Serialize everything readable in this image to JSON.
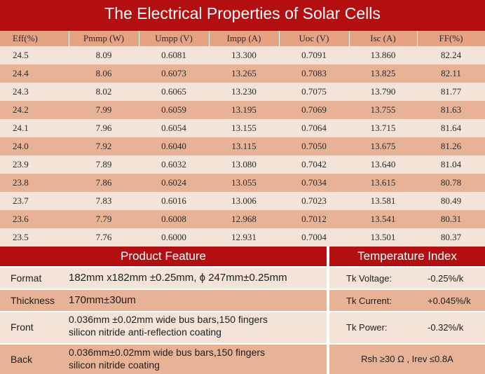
{
  "title": "The Electrical Properties of Solar Cells",
  "table": {
    "headers": [
      "Eff(%)",
      "Pmmp (W)",
      "Umpp (V)",
      "Impp (A)",
      "Uoc (V)",
      "Isc (A)",
      "FF(%)"
    ],
    "rows": [
      [
        "24.5",
        "8.09",
        "0.6081",
        "13.300",
        "0.7091",
        "13.860",
        "82.24"
      ],
      [
        "24.4",
        "8.06",
        "0.6073",
        "13.265",
        "0.7083",
        "13.825",
        "82.11"
      ],
      [
        "24.3",
        "8.02",
        "0.6065",
        "13.230",
        "0.7075",
        "13.790",
        "81.77"
      ],
      [
        "24.2",
        "7.99",
        "0.6059",
        "13.195",
        "0.7069",
        "13.755",
        "81.63"
      ],
      [
        "24.1",
        "7.96",
        "0.6054",
        "13.155",
        "0.7064",
        "13.715",
        "81.64"
      ],
      [
        "24.0",
        "7.92",
        "0.6040",
        "13.115",
        "0.7050",
        "13.675",
        "81.26"
      ],
      [
        "23.9",
        "7.89",
        "0.6032",
        "13.080",
        "0.7042",
        "13.640",
        "81.04"
      ],
      [
        "23.8",
        "7.86",
        "0.6024",
        "13.055",
        "0.7034",
        "13.615",
        "80.78"
      ],
      [
        "23.7",
        "7.83",
        "0.6016",
        "13.006",
        "0.7023",
        "13.581",
        "80.49"
      ],
      [
        "23.6",
        "7.79",
        "0.6008",
        "12.968",
        "0.7012",
        "13.541",
        "80.31"
      ],
      [
        "23.5",
        "7.76",
        "0.6000",
        "12.931",
        "0.7004",
        "13.501",
        "80.37"
      ]
    ]
  },
  "product_feature": {
    "title": "Product Feature",
    "format_label": "Format",
    "format_value": "182mm x182mm ±0.25mm, ϕ 247mm±0.25mm",
    "thickness_label": "Thickness",
    "thickness_value": "170mm±30um",
    "front_label": "Front",
    "front_line1": "0.036mm ±0.02mm wide bus bars,150 fingers",
    "front_line2": "silicon nitride anti-reflection coating",
    "back_label": "Back",
    "back_line1": "0.036mm±0.02mm wide bus bars,150 fingers",
    "back_line2": "silicon nitride coating"
  },
  "temperature_index": {
    "title": "Temperature Index",
    "voltage_label": "Tk Voltage:",
    "voltage_value": "-0.25%/k",
    "current_label": "Tk Current:",
    "current_value": "+0.045%/k",
    "power_label": "Tk Power:",
    "power_value": "-0.32%/k",
    "footer": "Rsh ≥30 Ω , Irev ≤0.8A"
  }
}
